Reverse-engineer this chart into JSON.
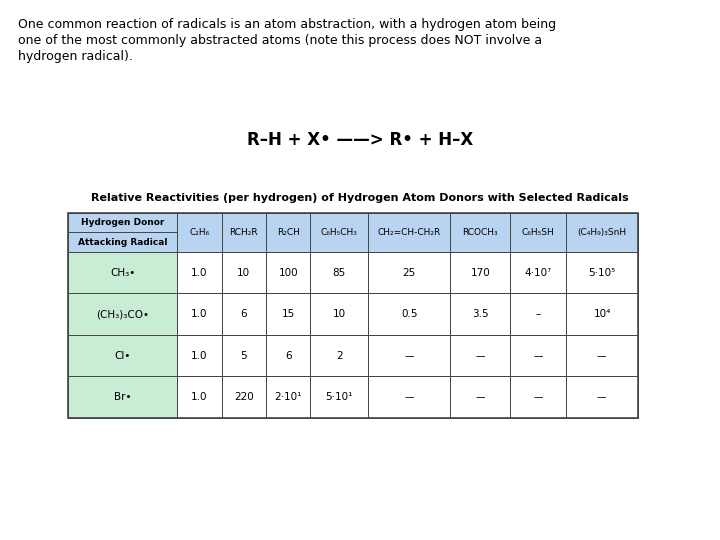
{
  "intro_text_lines": [
    "One common reaction of radicals is an atom abstraction, with a hydrogen atom being",
    "one of the most commonly abstracted atoms (note this process does NOT involve a",
    "hydrogen radical)."
  ],
  "equation": "R–H + X• ——> R• + H–X",
  "table_title": "Relative Reactivities (per hydrogen) of Hydrogen Atom Donors with Selected Radicals",
  "col_headers": [
    "C₂H₆",
    "RCH₂R",
    "R₂CH",
    "C₆H₅CH₃",
    "CH₂=CH-CH₂R",
    "RCOCH₃",
    "C₆H₅SH",
    "(C₄H₉)₃SnH"
  ],
  "row_labels": [
    "CH₃•",
    "(CH₃)₃CO•",
    "Cl•",
    "Br•"
  ],
  "table_data": [
    [
      "1.0",
      "10",
      "100",
      "85",
      "25",
      "170",
      "4·10⁷",
      "5·10⁵"
    ],
    [
      "1.0",
      "6",
      "15",
      "10",
      "0.5",
      "3.5",
      "–",
      "10⁴"
    ],
    [
      "1.0",
      "5",
      "6",
      "2",
      "––",
      "––",
      "––",
      "––"
    ],
    [
      "1.0",
      "220",
      "2·10¹",
      "5·10¹",
      "––",
      "––",
      "––",
      "––"
    ]
  ],
  "header_bg": "#b8d4f0",
  "row_label_bg": "#c8ecd4",
  "data_bg": "#ffffff",
  "bg_color": "#ffffff",
  "border_color": "#444444",
  "text_color": "#000000",
  "intro_fontsize": 9.0,
  "eq_fontsize": 12.0,
  "title_fontsize": 8.0,
  "header_fontsize": 6.5,
  "data_fontsize": 7.5,
  "label_fontsize": 7.5
}
